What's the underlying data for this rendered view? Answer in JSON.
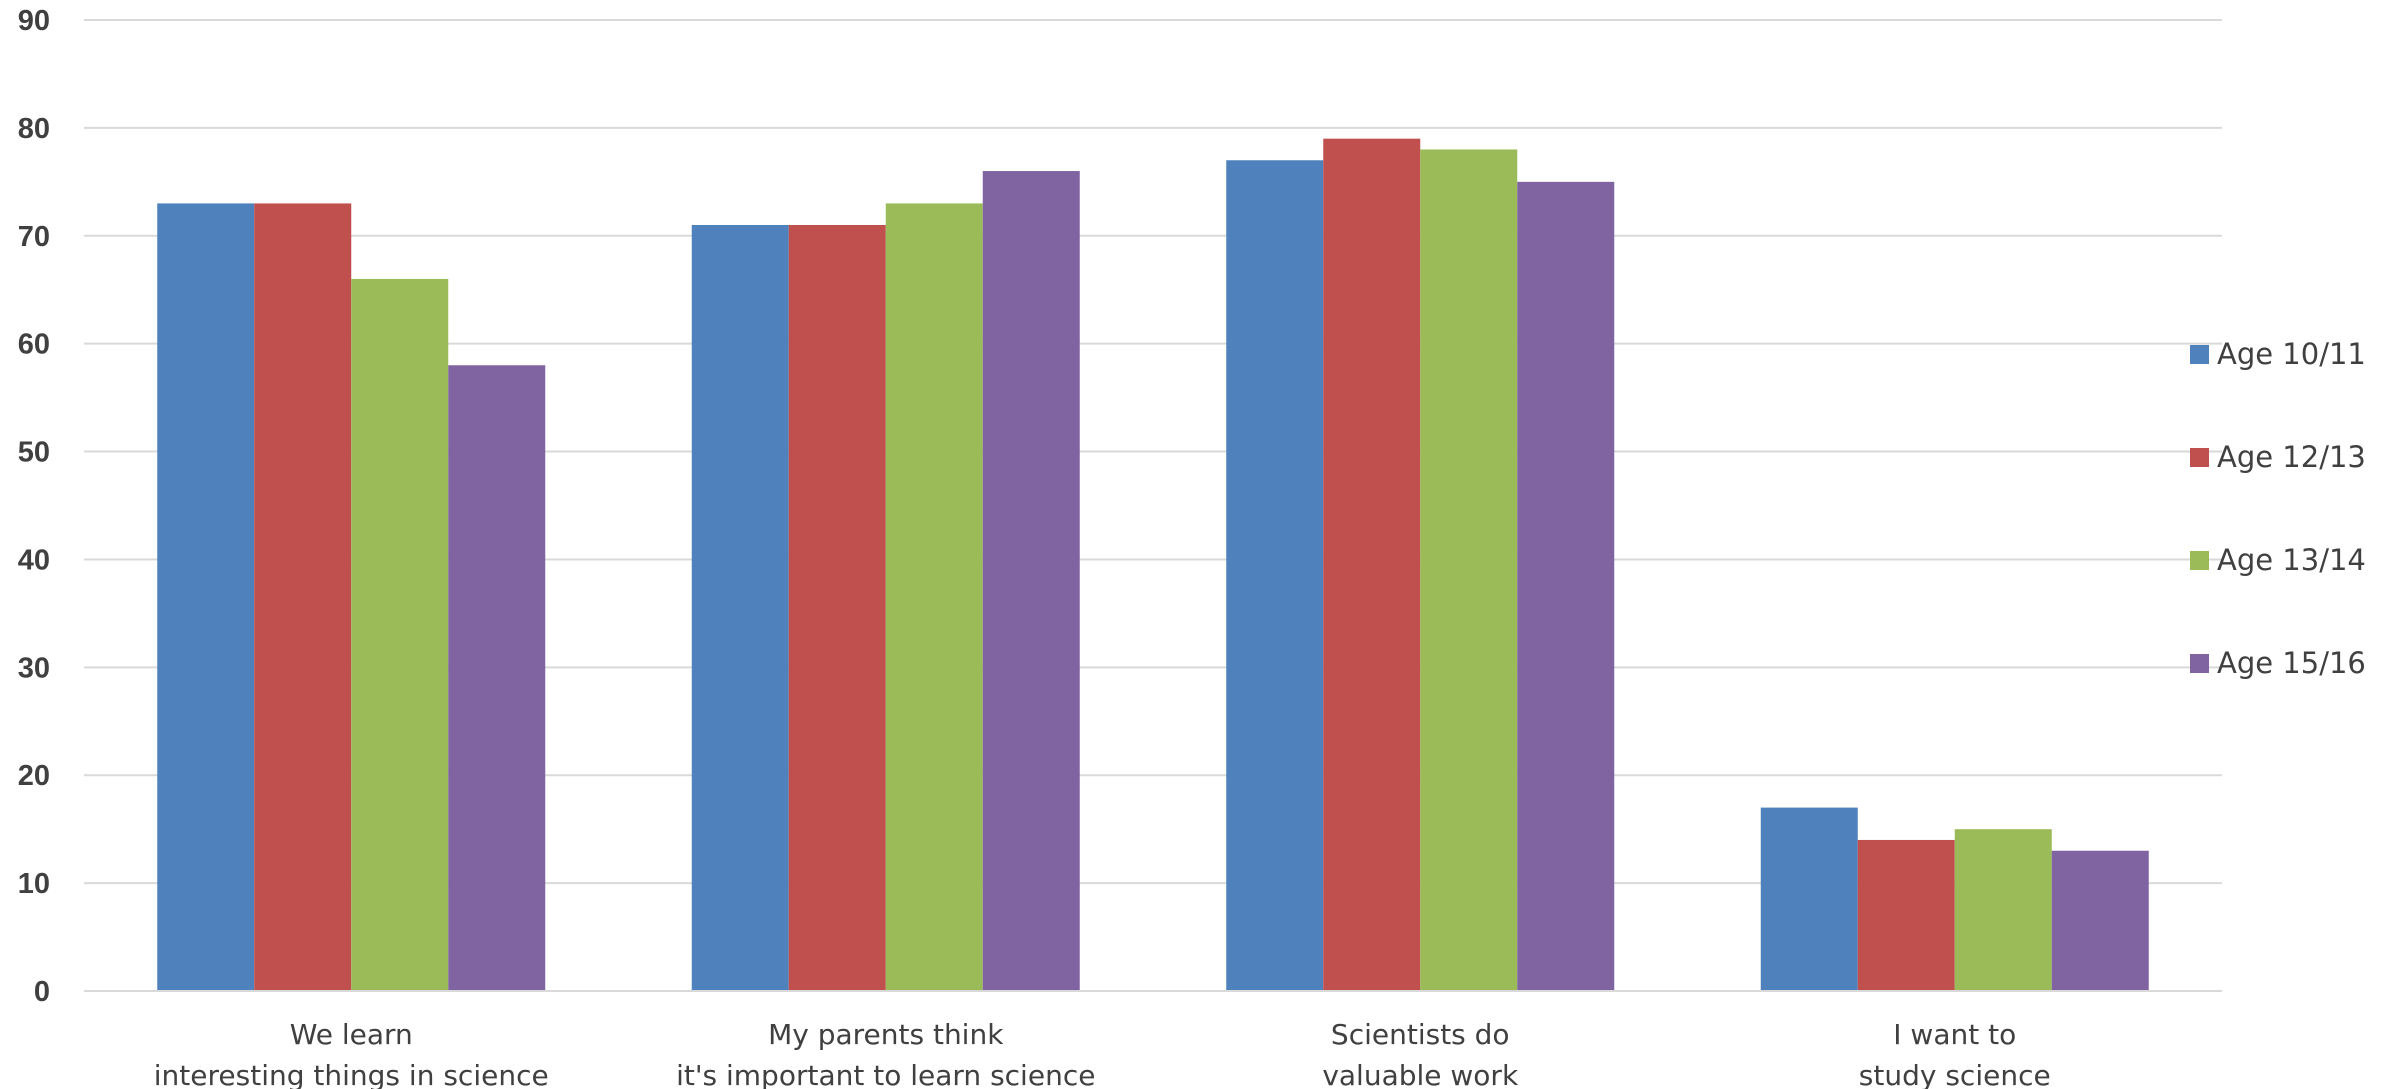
{
  "chart_data": {
    "type": "bar",
    "title": "",
    "xlabel": "",
    "ylabel": "",
    "ylim": [
      0,
      90
    ],
    "yticks": [
      0,
      10,
      20,
      30,
      40,
      50,
      60,
      70,
      80,
      90
    ],
    "grid": true,
    "legend_position": "right",
    "categories": [
      [
        "We learn",
        "interesting things in science"
      ],
      [
        "My parents think",
        "it's important to learn science"
      ],
      [
        "Scientists do",
        "valuable work"
      ],
      [
        "I want to",
        "study science"
      ]
    ],
    "series": [
      {
        "name": "Age 10/11",
        "color": "#4f81bd",
        "values": [
          73,
          71,
          77,
          17
        ]
      },
      {
        "name": "Age 12/13",
        "color": "#c0504d",
        "values": [
          73,
          71,
          79,
          14
        ]
      },
      {
        "name": "Age 13/14",
        "color": "#9bbb59",
        "values": [
          66,
          73,
          78,
          15
        ]
      },
      {
        "name": "Age 15/16",
        "color": "#8064a2",
        "values": [
          58,
          76,
          75,
          13
        ]
      }
    ]
  }
}
